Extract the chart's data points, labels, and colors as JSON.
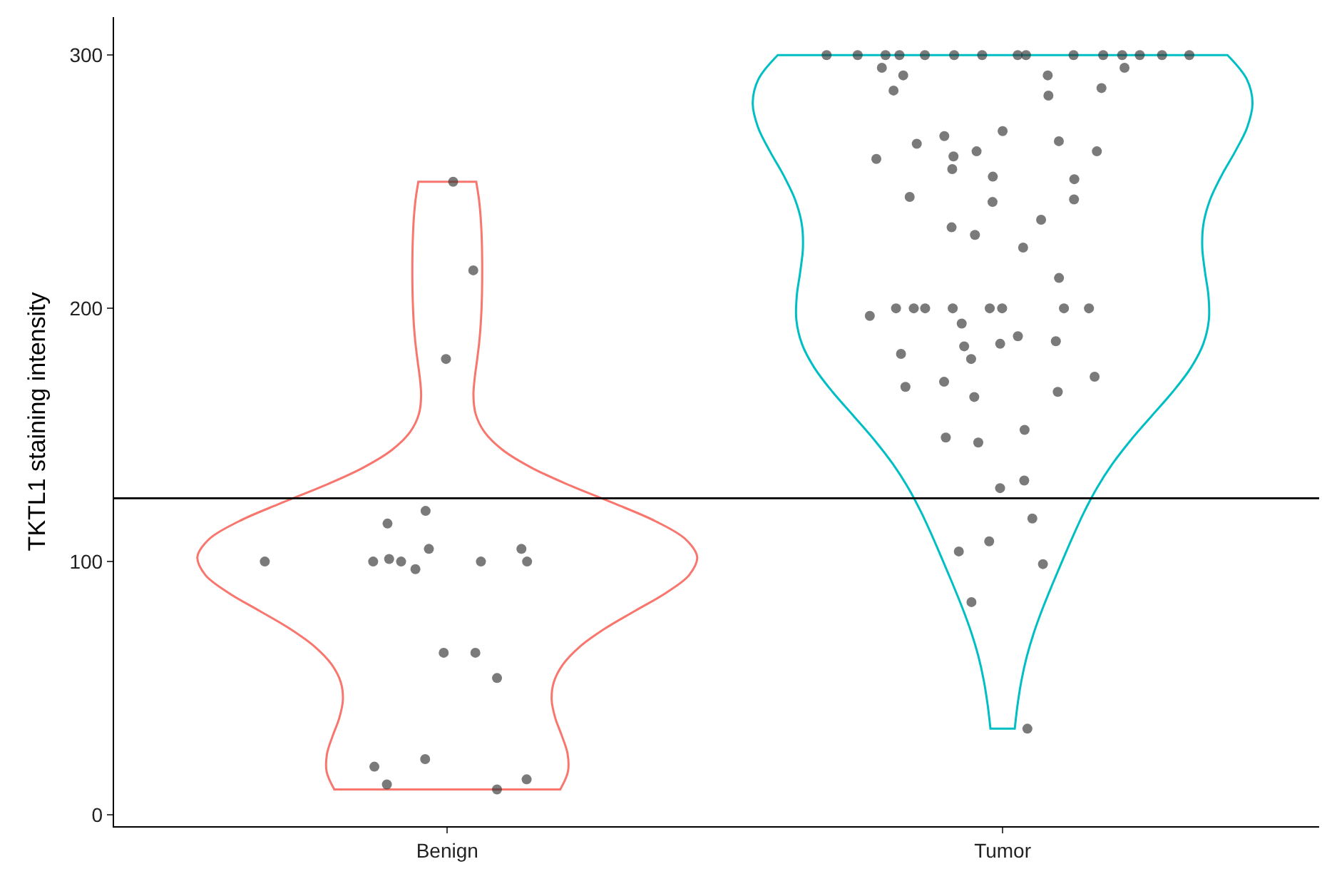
{
  "chart_data": {
    "type": "scatter",
    "ylabel": "TKTL1 staining intensity",
    "categories": [
      "Benign",
      "Tumor"
    ],
    "colors": [
      "#f8766d",
      "#00bfc4"
    ],
    "ylim": [
      -4.5,
      315
    ],
    "yticks": [
      0,
      100,
      200,
      300
    ],
    "ref_lines": [
      {
        "axis": "y",
        "value": 125,
        "color": "#000000"
      }
    ],
    "series": [
      {
        "color": "#333333",
        "marker": "circle",
        "x": [
          "Benign",
          "Benign",
          "Benign",
          "Benign",
          "Benign",
          "Benign",
          "Benign",
          "Benign",
          "Benign",
          "Benign",
          "Benign",
          "Benign",
          "Benign",
          "Benign",
          "Benign",
          "Benign",
          "Benign",
          "Benign",
          "Benign",
          "Benign",
          "Benign",
          "Benign"
        ],
        "values": [
          250,
          215,
          180,
          120,
          115,
          100,
          100,
          100,
          105,
          100,
          97,
          101,
          100,
          105,
          64,
          64,
          54,
          22,
          19,
          14,
          10,
          12
        ]
      },
      {
        "color": "#333333",
        "marker": "circle",
        "x": [
          "Tumor",
          "Tumor",
          "Tumor",
          "Tumor",
          "Tumor",
          "Tumor",
          "Tumor",
          "Tumor",
          "Tumor",
          "Tumor",
          "Tumor",
          "Tumor",
          "Tumor",
          "Tumor",
          "Tumor",
          "Tumor",
          "Tumor",
          "Tumor",
          "Tumor",
          "Tumor",
          "Tumor",
          "Tumor",
          "Tumor",
          "Tumor",
          "Tumor",
          "Tumor",
          "Tumor",
          "Tumor",
          "Tumor",
          "Tumor",
          "Tumor",
          "Tumor",
          "Tumor",
          "Tumor",
          "Tumor",
          "Tumor",
          "Tumor",
          "Tumor",
          "Tumor",
          "Tumor",
          "Tumor",
          "Tumor",
          "Tumor",
          "Tumor",
          "Tumor",
          "Tumor",
          "Tumor",
          "Tumor",
          "Tumor",
          "Tumor",
          "Tumor",
          "Tumor",
          "Tumor",
          "Tumor",
          "Tumor",
          "Tumor",
          "Tumor",
          "Tumor",
          "Tumor",
          "Tumor",
          "Tumor",
          "Tumor",
          "Tumor",
          "Tumor",
          "Tumor",
          "Tumor",
          "Tumor",
          "Tumor",
          "Tumor",
          "Tumor",
          "Tumor",
          "Tumor",
          "Tumor"
        ],
        "values": [
          300,
          300,
          300,
          300,
          300,
          300,
          300,
          300,
          300,
          300,
          300,
          300,
          300,
          300,
          300,
          295,
          292,
          295,
          292,
          287,
          284,
          286,
          270,
          265,
          262,
          259,
          266,
          262,
          260,
          268,
          251,
          252,
          255,
          242,
          244,
          243,
          235,
          232,
          229,
          224,
          212,
          200,
          200,
          200,
          200,
          200,
          200,
          200,
          200,
          197,
          194,
          185,
          187,
          189,
          186,
          182,
          180,
          173,
          167,
          171,
          165,
          169,
          152,
          147,
          149,
          129,
          132,
          117,
          104,
          108,
          99,
          84,
          34
        ]
      }
    ]
  }
}
